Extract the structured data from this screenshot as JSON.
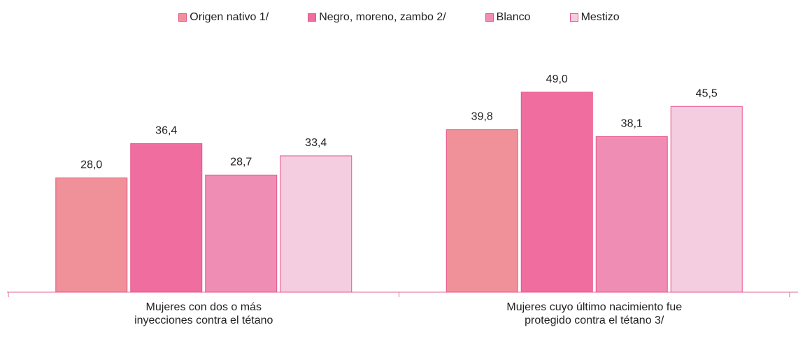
{
  "chart_data": {
    "type": "bar",
    "categories": [
      "Mujeres con dos o más inyecciones contra el tétano",
      "Mujeres cuyo último nacimiento fue protegido contra el tétano 3/"
    ],
    "series": [
      {
        "name": "Origen nativo 1/",
        "color": "#f0919a",
        "values": [
          28.0,
          39.8
        ],
        "value_labels": [
          "28,0",
          "39,8"
        ]
      },
      {
        "name": "Negro, moreno, zambo 2/",
        "color": "#f06e9f",
        "values": [
          36.4,
          49.0
        ],
        "value_labels": [
          "36,4",
          "49,0"
        ]
      },
      {
        "name": "Blanco",
        "color": "#f08db5",
        "values": [
          28.7,
          38.1
        ],
        "value_labels": [
          "28,7",
          "38,1"
        ]
      },
      {
        "name": "Mestizo",
        "color": "#f5cde0",
        "values": [
          33.4,
          45.5
        ],
        "value_labels": [
          "33,4",
          "45,5"
        ]
      }
    ]
  }
}
